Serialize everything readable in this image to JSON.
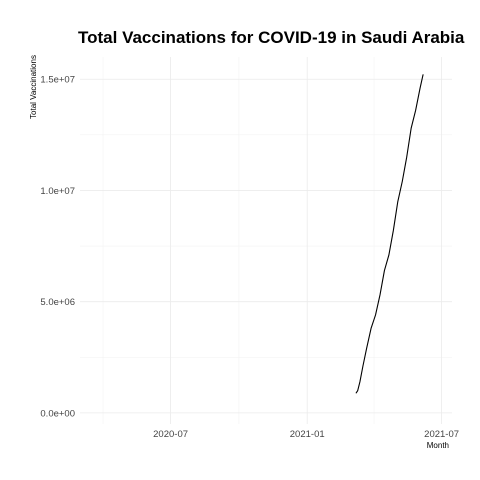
{
  "chart_data": {
    "type": "line",
    "title": "Total Vaccinations for COVID-19 in Saudi Arabia",
    "xlabel": "Month",
    "ylabel": "Total Vaccinations",
    "xlim": [
      "2020-03-01",
      "2021-07-15"
    ],
    "ylim": [
      -500000,
      16000000
    ],
    "x_ticks": [
      {
        "value": "2020-07-01",
        "label": "2020-07"
      },
      {
        "value": "2021-01-01",
        "label": "2021-01"
      },
      {
        "value": "2021-07-01",
        "label": "2021-07"
      }
    ],
    "x_minor_ticks": [
      "2020-04-01",
      "2020-10-01",
      "2021-04-01"
    ],
    "y_ticks": [
      {
        "value": 0,
        "label": "0.0e+00"
      },
      {
        "value": 5000000,
        "label": "5.0e+06"
      },
      {
        "value": 10000000,
        "label": "1.0e+07"
      },
      {
        "value": 15000000,
        "label": "1.5e+07"
      }
    ],
    "y_minor_ticks": [
      2500000,
      7500000,
      12500000
    ],
    "grid": true,
    "series": [
      {
        "x": [
          "2021-03-08",
          "2021-03-10",
          "2021-03-13",
          "2021-03-17",
          "2021-03-22",
          "2021-03-28",
          "2021-04-03",
          "2021-04-09",
          "2021-04-15",
          "2021-04-21",
          "2021-04-27",
          "2021-05-03",
          "2021-05-09",
          "2021-05-15",
          "2021-05-21",
          "2021-05-27",
          "2021-06-02",
          "2021-06-06"
        ],
        "y": [
          900000,
          1000000,
          1400000,
          2100000,
          2900000,
          3800000,
          4400000,
          5300000,
          6400000,
          7100000,
          8200000,
          9500000,
          10400000,
          11500000,
          12800000,
          13600000,
          14600000,
          15200000
        ]
      }
    ]
  }
}
